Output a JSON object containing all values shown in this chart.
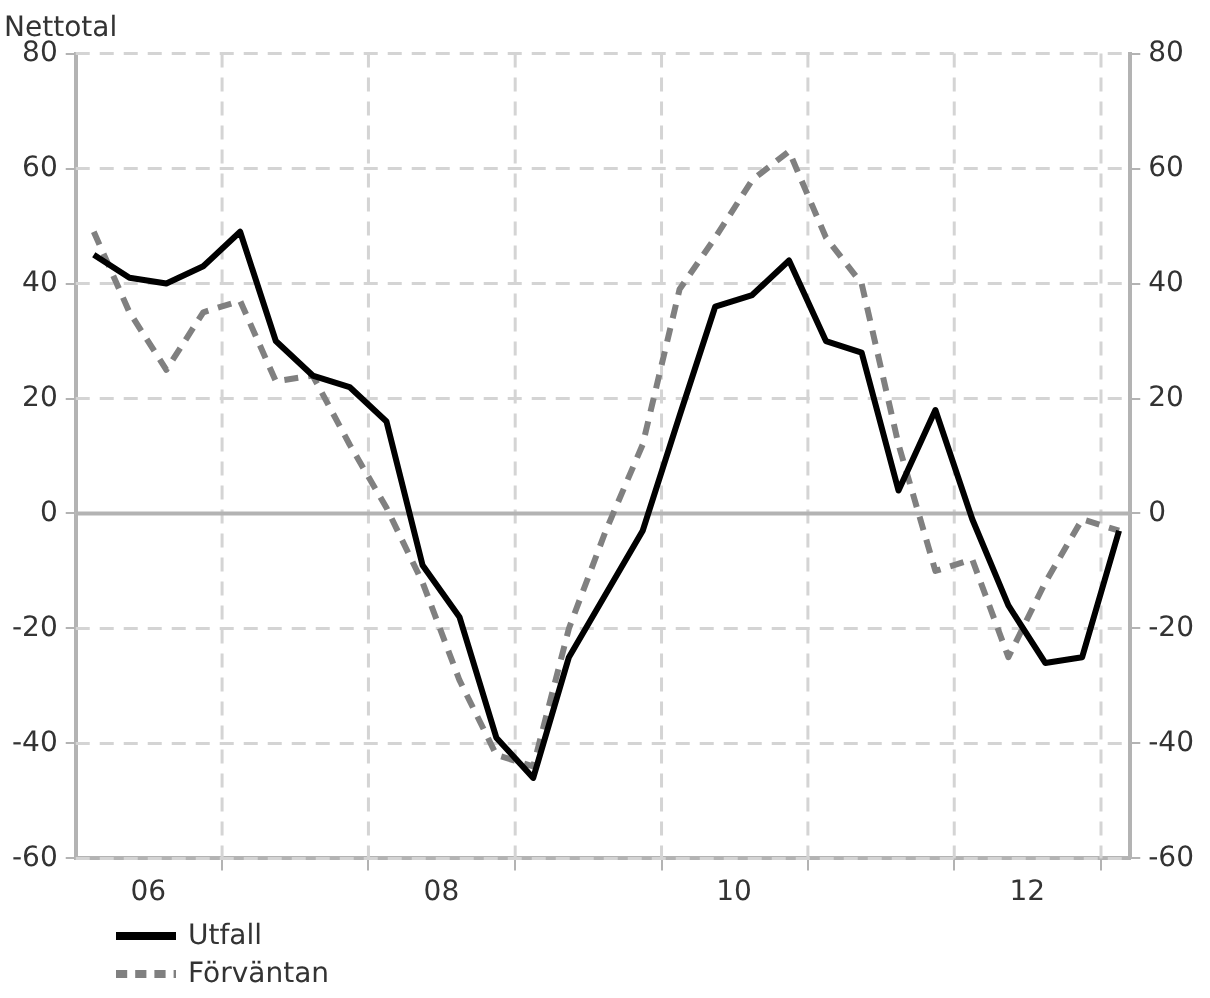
{
  "chart_data": {
    "type": "line",
    "title": "Nettotal",
    "x": [
      "2006-02-15",
      "2006-05-15",
      "2006-08-15",
      "2006-11-15",
      "2007-02-15",
      "2007-05-15",
      "2007-08-15",
      "2007-11-15",
      "2008-02-15",
      "2008-05-15",
      "2008-08-15",
      "2008-11-15",
      "2009-02-15",
      "2009-05-15",
      "2009-08-15",
      "2009-11-15",
      "2010-02-15",
      "2010-05-15",
      "2010-08-15",
      "2010-11-15",
      "2011-02-15",
      "2011-05-15",
      "2011-08-15",
      "2011-11-15",
      "2012-02-15",
      "2012-05-15",
      "2012-08-15",
      "2012-11-15",
      "2013-02-15"
    ],
    "xlim": [
      "2006-01-01",
      "2013-03-15"
    ],
    "xticks": [
      {
        "value": "2006-07-01",
        "label": "06"
      },
      {
        "value": "2007-01-01",
        "label": null
      },
      {
        "value": "2008-01-01",
        "label": null
      },
      {
        "value": "2008-07-01",
        "label": "08"
      },
      {
        "value": "2009-01-01",
        "label": null
      },
      {
        "value": "2010-01-01",
        "label": null
      },
      {
        "value": "2010-07-01",
        "label": "10"
      },
      {
        "value": "2011-01-01",
        "label": null
      },
      {
        "value": "2012-01-01",
        "label": null
      },
      {
        "value": "2012-07-01",
        "label": "12"
      },
      {
        "value": "2013-01-01",
        "label": null
      }
    ],
    "ylim": [
      -60,
      80
    ],
    "yticks": [
      -60,
      -40,
      -20,
      0,
      20,
      40,
      60,
      80
    ],
    "y2lim": [
      -60,
      80
    ],
    "y2ticks": [
      -60,
      -40,
      -20,
      0,
      20,
      40,
      60,
      80
    ],
    "grid": true,
    "legend": "bottom left",
    "marker": "none",
    "ref_lines": [
      {
        "axis": "y",
        "value": 0,
        "color": "#b3b3b3"
      }
    ],
    "series": [
      {
        "name": "Utfall",
        "color": "#000000",
        "line_style": "solid",
        "values": [
          45,
          41,
          40,
          43,
          49,
          30,
          24,
          22,
          16,
          -9,
          -18,
          -39,
          -46,
          -25,
          -14,
          -3,
          17,
          36,
          38,
          44,
          30,
          28,
          4,
          18,
          -1,
          -16,
          -26,
          -25,
          -3
        ]
      },
      {
        "name": "Förväntan",
        "color": "#808080",
        "line_style": "dashed",
        "values": [
          49,
          35,
          25,
          35,
          37,
          23,
          24,
          12,
          1,
          -12,
          -29,
          -42,
          -44,
          -20,
          -3,
          12,
          39,
          48,
          58,
          63,
          48,
          40,
          12,
          -10,
          -8,
          -25,
          -12,
          -1,
          -3
        ]
      }
    ]
  }
}
